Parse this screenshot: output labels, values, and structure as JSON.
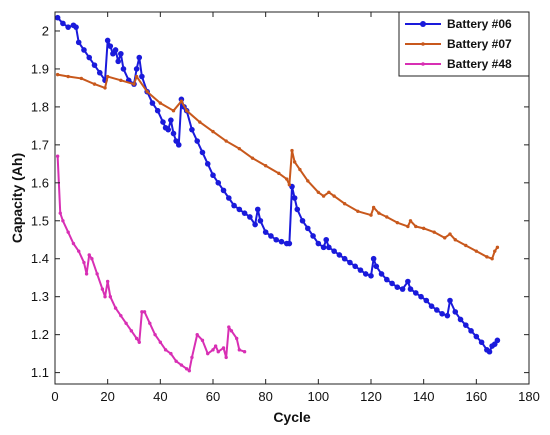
{
  "chart_data": {
    "type": "line",
    "xlabel": "Cycle",
    "ylabel": "Capacity (Ah)",
    "xlim": [
      0,
      180
    ],
    "ylim": [
      1.07,
      2.05
    ],
    "xticks": [
      0,
      20,
      40,
      60,
      80,
      100,
      120,
      140,
      160,
      180
    ],
    "yticks": [
      1.1,
      1.2,
      1.3,
      1.4,
      1.5,
      1.6,
      1.7,
      1.8,
      1.9,
      2.0
    ],
    "ytick_labels": [
      "1.1",
      "1.2",
      "1.3",
      "1.4",
      "1.5",
      "1.6",
      "1.7",
      "1.8",
      "1.9",
      "2"
    ],
    "grid": false,
    "legend_position": "top-right",
    "series": [
      {
        "name": "Battery #06",
        "color": "#1a1adb",
        "marker": "circle",
        "points": [
          [
            1,
            2.035
          ],
          [
            3,
            2.02
          ],
          [
            5,
            2.01
          ],
          [
            7,
            2.015
          ],
          [
            8,
            2.01
          ],
          [
            9,
            1.97
          ],
          [
            11,
            1.95
          ],
          [
            13,
            1.93
          ],
          [
            15,
            1.91
          ],
          [
            17,
            1.89
          ],
          [
            19,
            1.87
          ],
          [
            20,
            1.975
          ],
          [
            21,
            1.96
          ],
          [
            22,
            1.94
          ],
          [
            23,
            1.95
          ],
          [
            24,
            1.92
          ],
          [
            25,
            1.94
          ],
          [
            26,
            1.9
          ],
          [
            28,
            1.87
          ],
          [
            30,
            1.86
          ],
          [
            31,
            1.9
          ],
          [
            32,
            1.93
          ],
          [
            33,
            1.88
          ],
          [
            35,
            1.84
          ],
          [
            37,
            1.81
          ],
          [
            39,
            1.79
          ],
          [
            41,
            1.76
          ],
          [
            42,
            1.745
          ],
          [
            43,
            1.74
          ],
          [
            44,
            1.765
          ],
          [
            45,
            1.73
          ],
          [
            46,
            1.71
          ],
          [
            47,
            1.7
          ],
          [
            48,
            1.82
          ],
          [
            49,
            1.8
          ],
          [
            50,
            1.79
          ],
          [
            52,
            1.74
          ],
          [
            54,
            1.71
          ],
          [
            56,
            1.68
          ],
          [
            58,
            1.65
          ],
          [
            60,
            1.62
          ],
          [
            62,
            1.6
          ],
          [
            64,
            1.58
          ],
          [
            66,
            1.56
          ],
          [
            68,
            1.54
          ],
          [
            70,
            1.53
          ],
          [
            72,
            1.52
          ],
          [
            74,
            1.51
          ],
          [
            76,
            1.49
          ],
          [
            77,
            1.53
          ],
          [
            78,
            1.5
          ],
          [
            80,
            1.47
          ],
          [
            82,
            1.46
          ],
          [
            84,
            1.45
          ],
          [
            86,
            1.445
          ],
          [
            88,
            1.44
          ],
          [
            89,
            1.44
          ],
          [
            90,
            1.59
          ],
          [
            91,
            1.56
          ],
          [
            92,
            1.53
          ],
          [
            94,
            1.5
          ],
          [
            96,
            1.48
          ],
          [
            98,
            1.46
          ],
          [
            100,
            1.44
          ],
          [
            102,
            1.43
          ],
          [
            103,
            1.45
          ],
          [
            104,
            1.43
          ],
          [
            106,
            1.42
          ],
          [
            108,
            1.41
          ],
          [
            110,
            1.4
          ],
          [
            112,
            1.39
          ],
          [
            114,
            1.38
          ],
          [
            116,
            1.37
          ],
          [
            118,
            1.36
          ],
          [
            120,
            1.355
          ],
          [
            121,
            1.4
          ],
          [
            122,
            1.38
          ],
          [
            124,
            1.36
          ],
          [
            126,
            1.345
          ],
          [
            128,
            1.335
          ],
          [
            130,
            1.325
          ],
          [
            132,
            1.32
          ],
          [
            134,
            1.34
          ],
          [
            135,
            1.32
          ],
          [
            137,
            1.31
          ],
          [
            139,
            1.3
          ],
          [
            141,
            1.29
          ],
          [
            143,
            1.275
          ],
          [
            145,
            1.265
          ],
          [
            147,
            1.255
          ],
          [
            149,
            1.25
          ],
          [
            150,
            1.29
          ],
          [
            152,
            1.26
          ],
          [
            154,
            1.24
          ],
          [
            156,
            1.225
          ],
          [
            158,
            1.21
          ],
          [
            160,
            1.195
          ],
          [
            162,
            1.18
          ],
          [
            164,
            1.16
          ],
          [
            165,
            1.155
          ],
          [
            166,
            1.17
          ],
          [
            167,
            1.175
          ],
          [
            168,
            1.185
          ]
        ]
      },
      {
        "name": "Battery #07",
        "color": "#c8581c",
        "marker": "dot",
        "points": [
          [
            1,
            1.885
          ],
          [
            5,
            1.88
          ],
          [
            10,
            1.875
          ],
          [
            15,
            1.86
          ],
          [
            19,
            1.85
          ],
          [
            20,
            1.88
          ],
          [
            25,
            1.87
          ],
          [
            30,
            1.86
          ],
          [
            31,
            1.88
          ],
          [
            35,
            1.84
          ],
          [
            40,
            1.81
          ],
          [
            45,
            1.79
          ],
          [
            48,
            1.815
          ],
          [
            50,
            1.79
          ],
          [
            55,
            1.76
          ],
          [
            60,
            1.735
          ],
          [
            65,
            1.71
          ],
          [
            70,
            1.69
          ],
          [
            75,
            1.665
          ],
          [
            80,
            1.645
          ],
          [
            85,
            1.625
          ],
          [
            88,
            1.61
          ],
          [
            89,
            1.595
          ],
          [
            90,
            1.685
          ],
          [
            91,
            1.655
          ],
          [
            93,
            1.635
          ],
          [
            96,
            1.605
          ],
          [
            100,
            1.575
          ],
          [
            102,
            1.565
          ],
          [
            104,
            1.575
          ],
          [
            106,
            1.565
          ],
          [
            110,
            1.545
          ],
          [
            115,
            1.525
          ],
          [
            120,
            1.515
          ],
          [
            121,
            1.535
          ],
          [
            123,
            1.52
          ],
          [
            126,
            1.51
          ],
          [
            130,
            1.495
          ],
          [
            134,
            1.485
          ],
          [
            135,
            1.5
          ],
          [
            137,
            1.485
          ],
          [
            140,
            1.48
          ],
          [
            144,
            1.47
          ],
          [
            148,
            1.455
          ],
          [
            150,
            1.465
          ],
          [
            152,
            1.45
          ],
          [
            156,
            1.435
          ],
          [
            160,
            1.42
          ],
          [
            164,
            1.405
          ],
          [
            166,
            1.4
          ],
          [
            167,
            1.42
          ],
          [
            168,
            1.43
          ]
        ]
      },
      {
        "name": "Battery #48",
        "color": "#d82fb4",
        "marker": "dot",
        "points": [
          [
            1,
            1.67
          ],
          [
            2,
            1.52
          ],
          [
            3,
            1.5
          ],
          [
            5,
            1.47
          ],
          [
            7,
            1.44
          ],
          [
            9,
            1.42
          ],
          [
            11,
            1.39
          ],
          [
            12,
            1.36
          ],
          [
            13,
            1.41
          ],
          [
            14,
            1.4
          ],
          [
            16,
            1.36
          ],
          [
            18,
            1.32
          ],
          [
            19,
            1.3
          ],
          [
            20,
            1.34
          ],
          [
            21,
            1.3
          ],
          [
            23,
            1.27
          ],
          [
            25,
            1.25
          ],
          [
            27,
            1.23
          ],
          [
            29,
            1.21
          ],
          [
            31,
            1.19
          ],
          [
            32,
            1.18
          ],
          [
            33,
            1.26
          ],
          [
            34,
            1.26
          ],
          [
            36,
            1.23
          ],
          [
            38,
            1.2
          ],
          [
            40,
            1.18
          ],
          [
            42,
            1.16
          ],
          [
            44,
            1.15
          ],
          [
            46,
            1.13
          ],
          [
            48,
            1.12
          ],
          [
            50,
            1.11
          ],
          [
            51,
            1.105
          ],
          [
            52,
            1.14
          ],
          [
            54,
            1.2
          ],
          [
            56,
            1.185
          ],
          [
            58,
            1.15
          ],
          [
            60,
            1.16
          ],
          [
            61,
            1.17
          ],
          [
            62,
            1.155
          ],
          [
            64,
            1.165
          ],
          [
            65,
            1.14
          ],
          [
            66,
            1.22
          ],
          [
            67,
            1.21
          ],
          [
            69,
            1.19
          ],
          [
            70,
            1.16
          ],
          [
            72,
            1.155
          ]
        ]
      }
    ]
  }
}
